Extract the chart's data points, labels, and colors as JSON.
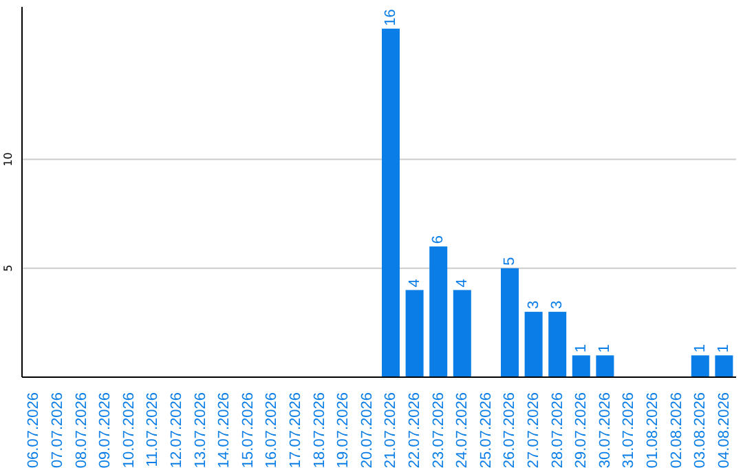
{
  "chart_data": {
    "type": "bar",
    "categories": [
      "06.07.2026",
      "07.07.2026",
      "08.07.2026",
      "09.07.2026",
      "10.07.2026",
      "11.07.2026",
      "12.07.2026",
      "13.07.2026",
      "14.07.2026",
      "15.07.2026",
      "16.07.2026",
      "17.07.2026",
      "18.07.2026",
      "19.07.2026",
      "20.07.2026",
      "21.07.2026",
      "22.07.2026",
      "23.07.2026",
      "24.07.2026",
      "25.07.2026",
      "26.07.2026",
      "27.07.2026",
      "28.07.2026",
      "29.07.2026",
      "30.07.2026",
      "31.07.2026",
      "01.08.2026",
      "02.08.2026",
      "03.08.2026",
      "04.08.2026"
    ],
    "values": [
      0,
      0,
      0,
      0,
      0,
      0,
      0,
      0,
      0,
      0,
      0,
      0,
      0,
      0,
      0,
      16,
      4,
      6,
      4,
      0,
      5,
      3,
      3,
      1,
      1,
      0,
      0,
      0,
      1,
      1
    ],
    "value_labels": [
      null,
      null,
      null,
      null,
      null,
      null,
      null,
      null,
      null,
      null,
      null,
      null,
      null,
      null,
      null,
      "16",
      "4",
      "6",
      "4",
      null,
      "5",
      "3",
      "3",
      "1",
      "1",
      null,
      null,
      null,
      "1",
      "1"
    ],
    "color": "#0a7ee6",
    "ylim": [
      0,
      17
    ],
    "yticks": [
      5,
      10
    ],
    "grid": "y"
  }
}
